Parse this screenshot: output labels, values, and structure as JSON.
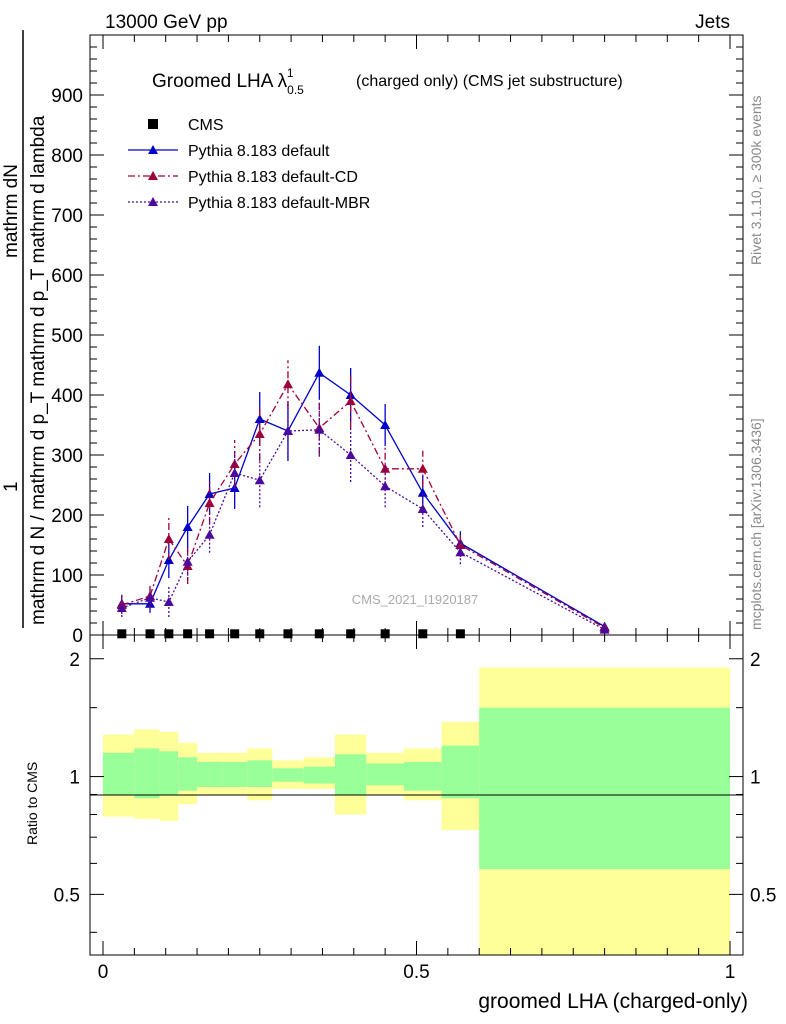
{
  "header": {
    "left": "13000 GeV pp",
    "right": "Jets"
  },
  "side": {
    "rivet": "Rivet 3.1.10, ≥ 300k events",
    "mcplots": "mcplots.cern.ch [arXiv:1306.3436]"
  },
  "watermark": "CMS_2021_I1920187",
  "colors": {
    "cms": "#000000",
    "default": "#0000cc",
    "cd": "#a0003a",
    "mbr": "#4b0a9e",
    "green": "#99ff99",
    "yellow": "#ffff99"
  },
  "chart_data": [
    {
      "type": "line",
      "title": "Groomed LHA λ^1_0.5 (charged only) (CMS jet substructure)",
      "title_main": "Groomed LHA λ",
      "title_sup": "1",
      "title_sub": "0.5",
      "title_rest": "(charged only) (CMS jet substructure)",
      "ylabel_top": "mathrm dN",
      "ylabel_bottom": "mathrm d p",
      "ylabel_mid": "_T mathrm d p_T mathrm d lambda",
      "ylabel_num": "1",
      "ylabel_denom": "mathrm d N / mathrm d p_T mathrm d p_T mathrm d lambda",
      "ylim": [
        0,
        1000
      ],
      "yticks": [
        0,
        100,
        200,
        300,
        400,
        500,
        600,
        700,
        800,
        900
      ],
      "xlim": [
        0,
        1
      ],
      "series": [
        {
          "name": "CMS",
          "style": "marker",
          "x": [
            0.03,
            0.075,
            0.105,
            0.135,
            0.17,
            0.21,
            0.25,
            0.295,
            0.345,
            0.395,
            0.45,
            0.51,
            0.57
          ],
          "y": [
            2,
            2,
            2,
            2,
            2,
            2,
            2,
            2,
            2,
            2,
            2,
            2,
            2
          ]
        },
        {
          "name": "Pythia 8.183 default",
          "style": "solid",
          "x": [
            0.03,
            0.075,
            0.105,
            0.135,
            0.17,
            0.21,
            0.25,
            0.295,
            0.345,
            0.395,
            0.45,
            0.51,
            0.57,
            0.8
          ],
          "y": [
            52,
            52,
            125,
            180,
            235,
            245,
            360,
            340,
            437,
            400,
            350,
            237,
            153,
            14
          ],
          "err": [
            15,
            15,
            30,
            35,
            35,
            35,
            45,
            50,
            45,
            45,
            35,
            30,
            20,
            3
          ]
        },
        {
          "name": "Pythia 8.183 default-CD",
          "style": "dashdot",
          "x": [
            0.03,
            0.075,
            0.105,
            0.135,
            0.17,
            0.21,
            0.25,
            0.295,
            0.345,
            0.395,
            0.45,
            0.51,
            0.57,
            0.8
          ],
          "y": [
            50,
            65,
            160,
            115,
            220,
            285,
            335,
            418,
            345,
            390,
            277,
            277,
            150,
            12
          ],
          "err": [
            15,
            20,
            35,
            30,
            35,
            40,
            45,
            40,
            45,
            45,
            35,
            30,
            20,
            3
          ]
        },
        {
          "name": "Pythia 8.183 default-MBR",
          "style": "dotted",
          "x": [
            0.03,
            0.075,
            0.105,
            0.135,
            0.17,
            0.21,
            0.25,
            0.295,
            0.345,
            0.395,
            0.45,
            0.51,
            0.57,
            0.8
          ],
          "y": [
            45,
            62,
            55,
            122,
            167,
            270,
            258,
            340,
            342,
            300,
            248,
            210,
            138,
            9
          ],
          "err": [
            15,
            15,
            25,
            30,
            30,
            40,
            45,
            45,
            45,
            45,
            35,
            30,
            20,
            3
          ]
        }
      ],
      "legend": [
        "CMS",
        "Pythia 8.183 default",
        "Pythia 8.183 default-CD",
        "Pythia 8.183 default-MBR"
      ]
    },
    {
      "type": "area",
      "ylabel": "Ratio to CMS",
      "xlabel": "groomed LHA (charged-only)",
      "ylim": [
        0.35,
        2.3
      ],
      "yticks": [
        "0.5",
        "1",
        "2"
      ],
      "ytick_values": [
        0.5,
        1,
        2
      ],
      "xticks": [
        "0",
        "0.5",
        "1"
      ],
      "xtick_values": [
        0,
        0.5,
        1
      ],
      "xlim": [
        0,
        1
      ],
      "bins": [
        {
          "x0": 0.0,
          "x1": 0.05,
          "g": [
            0.9,
            1.15
          ],
          "y": [
            0.79,
            1.28
          ]
        },
        {
          "x0": 0.05,
          "x1": 0.09,
          "g": [
            0.88,
            1.18
          ],
          "y": [
            0.78,
            1.32
          ]
        },
        {
          "x0": 0.09,
          "x1": 0.12,
          "g": [
            0.9,
            1.16
          ],
          "y": [
            0.77,
            1.3
          ]
        },
        {
          "x0": 0.12,
          "x1": 0.15,
          "g": [
            0.92,
            1.12
          ],
          "y": [
            0.85,
            1.22
          ]
        },
        {
          "x0": 0.15,
          "x1": 0.19,
          "g": [
            0.94,
            1.09
          ],
          "y": [
            0.9,
            1.15
          ]
        },
        {
          "x0": 0.19,
          "x1": 0.23,
          "g": [
            0.94,
            1.09
          ],
          "y": [
            0.9,
            1.15
          ]
        },
        {
          "x0": 0.23,
          "x1": 0.27,
          "g": [
            0.94,
            1.1
          ],
          "y": [
            0.87,
            1.18
          ]
        },
        {
          "x0": 0.27,
          "x1": 0.32,
          "g": [
            0.97,
            1.05
          ],
          "y": [
            0.93,
            1.1
          ]
        },
        {
          "x0": 0.32,
          "x1": 0.37,
          "g": [
            0.96,
            1.06
          ],
          "y": [
            0.93,
            1.12
          ]
        },
        {
          "x0": 0.37,
          "x1": 0.42,
          "g": [
            0.9,
            1.14
          ],
          "y": [
            0.8,
            1.28
          ]
        },
        {
          "x0": 0.42,
          "x1": 0.48,
          "g": [
            0.95,
            1.08
          ],
          "y": [
            0.9,
            1.15
          ]
        },
        {
          "x0": 0.48,
          "x1": 0.54,
          "g": [
            0.92,
            1.09
          ],
          "y": [
            0.87,
            1.18
          ]
        },
        {
          "x0": 0.54,
          "x1": 0.6,
          "g": [
            0.88,
            1.2
          ],
          "y": [
            0.73,
            1.38
          ]
        },
        {
          "x0": 0.6,
          "x1": 1.0,
          "g": [
            0.58,
            1.5
          ],
          "y": [
            0.35,
            1.9
          ]
        }
      ]
    }
  ]
}
